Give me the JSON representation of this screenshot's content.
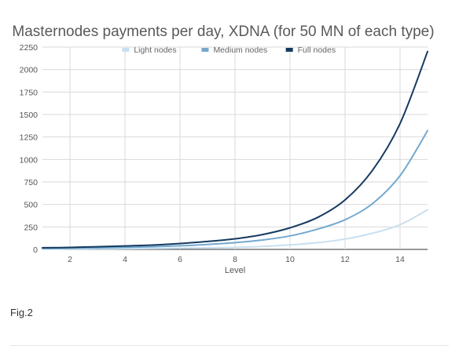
{
  "chart_data": {
    "type": "line",
    "title": "Masternodes payments per day, XDNA (for 50 MN of each type)",
    "xlabel": "Level",
    "ylabel": "",
    "xlim": [
      1,
      15
    ],
    "ylim": [
      0,
      2250
    ],
    "xticks": [
      2,
      4,
      6,
      8,
      10,
      12,
      14
    ],
    "yticks": [
      0,
      250,
      500,
      750,
      1000,
      1250,
      1500,
      1750,
      2000,
      2250
    ],
    "grid": true,
    "legend_position": "top",
    "x": [
      1,
      2,
      3,
      4,
      5,
      6,
      7,
      8,
      9,
      10,
      11,
      12,
      13,
      14,
      15
    ],
    "series": [
      {
        "name": "Light nodes",
        "color": "#c9dfef",
        "values": [
          4,
          5,
          6,
          8,
          10,
          13,
          17,
          22,
          33,
          50,
          75,
          115,
          180,
          275,
          440
        ]
      },
      {
        "name": "Medium nodes",
        "color": "#74a9cf",
        "values": [
          10,
          13,
          17,
          23,
          30,
          40,
          55,
          75,
          105,
          150,
          225,
          330,
          510,
          820,
          1320
        ]
      },
      {
        "name": "Full nodes",
        "color": "#153a60",
        "values": [
          18,
          22,
          30,
          38,
          48,
          65,
          88,
          118,
          165,
          240,
          355,
          550,
          880,
          1400,
          2200
        ]
      }
    ]
  },
  "figure": {
    "caption": "Fig.2"
  }
}
